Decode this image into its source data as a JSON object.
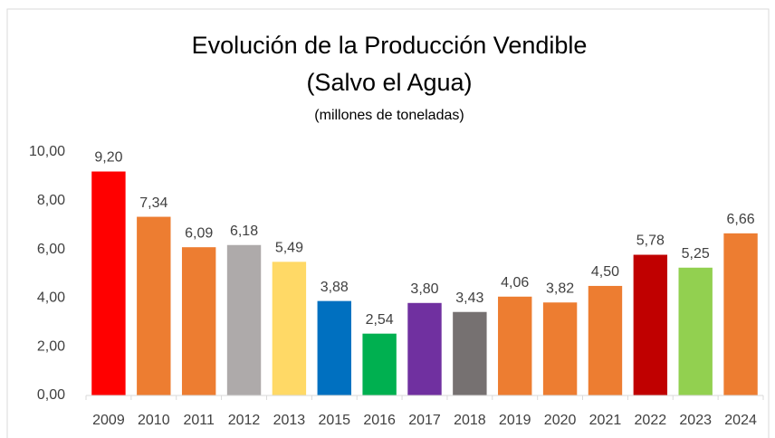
{
  "chart_data": {
    "type": "bar",
    "title": [
      "Evolución de la Producción Vendible",
      "(Salvo el Agua)"
    ],
    "subtitle": "(millones de toneladas)",
    "categories": [
      "2009",
      "2010",
      "2011",
      "2012",
      "2013",
      "2015",
      "2016",
      "2017",
      "2018",
      "2019",
      "2020",
      "2021",
      "2022",
      "2023",
      "2024"
    ],
    "values": [
      9.2,
      7.34,
      6.09,
      6.18,
      5.49,
      3.88,
      2.54,
      3.8,
      3.43,
      4.06,
      3.82,
      4.5,
      5.78,
      5.25,
      6.66
    ],
    "value_labels": [
      "9,20",
      "7,34",
      "6,09",
      "6,18",
      "5,49",
      "3,88",
      "2,54",
      "3,80",
      "3,43",
      "4,06",
      "3,82",
      "4,50",
      "5,78",
      "5,25",
      "6,66"
    ],
    "colors": [
      "#ff0000",
      "#ed7d31",
      "#ed7d31",
      "#aeaaaa",
      "#ffd966",
      "#0070c0",
      "#00b050",
      "#7030a0",
      "#767171",
      "#ed7d31",
      "#ed7d31",
      "#ed7d31",
      "#c00000",
      "#92d050",
      "#ed7d31"
    ],
    "ylim": [
      0,
      10
    ],
    "yticks": [
      {
        "value": 0,
        "label": "0,00"
      },
      {
        "value": 2,
        "label": "2,00"
      },
      {
        "value": 4,
        "label": "4,00"
      },
      {
        "value": 6,
        "label": "6,00"
      },
      {
        "value": 8,
        "label": "8,00"
      },
      {
        "value": 10,
        "label": "10,00"
      }
    ],
    "grid": false
  }
}
